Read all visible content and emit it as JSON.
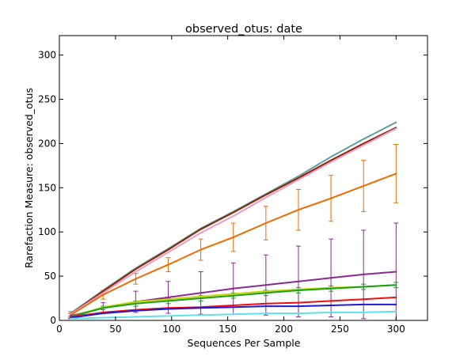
{
  "chart_data": {
    "type": "line",
    "title": "observed_otus: date",
    "xlabel": "Sequences Per Sample",
    "ylabel": "Rarefaction Measure: observed_otus",
    "xlim": [
      0,
      328
    ],
    "ylim": [
      0,
      322
    ],
    "xticks": [
      0,
      50,
      100,
      150,
      200,
      250,
      300
    ],
    "yticks": [
      0,
      50,
      100,
      150,
      200,
      250,
      300
    ],
    "grid": false,
    "x": [
      10,
      39,
      68,
      97,
      126,
      155,
      184,
      213,
      242,
      271,
      300
    ],
    "series": [
      {
        "color": "#5f9ea0",
        "values": [
          8,
          34,
          59,
          81,
          104,
          123,
          143,
          163,
          185,
          205,
          224
        ]
      },
      {
        "color": "#8b2500",
        "values": [
          7,
          33,
          58,
          80,
          103,
          122,
          142,
          161,
          181,
          200,
          218
        ]
      },
      {
        "color": "#ee9ac6",
        "values": [
          7,
          31,
          55,
          77,
          99,
          118,
          139,
          159,
          179,
          198,
          217
        ]
      },
      {
        "color": "#ee6a00",
        "values": [
          6,
          29,
          47,
          63,
          80,
          94,
          110,
          125,
          138,
          152,
          166
        ],
        "errors": [
          4,
          5,
          6,
          8,
          12,
          16,
          19,
          23,
          26,
          29,
          33
        ]
      },
      {
        "color": "#8b2a8e",
        "values": [
          5,
          14,
          21,
          26,
          31,
          36,
          40,
          44,
          48,
          52,
          55
        ],
        "errors": [
          3,
          6,
          12,
          18,
          24,
          29,
          34,
          40,
          44,
          50,
          55
        ]
      },
      {
        "color": "#c8d400",
        "values": [
          4,
          15,
          21,
          24,
          27,
          30,
          33,
          35,
          37,
          38,
          40
        ]
      },
      {
        "color": "#18a018",
        "values": [
          4,
          14,
          19,
          22,
          25,
          28,
          31,
          34,
          36,
          38,
          40
        ],
        "errors": [
          1,
          2,
          3,
          3,
          3,
          3,
          3,
          3,
          3,
          3,
          3
        ]
      },
      {
        "color": "#ee1010",
        "values": [
          4,
          9,
          12,
          14,
          15,
          17,
          19,
          20,
          22,
          24,
          26
        ]
      },
      {
        "color": "#1a1ad8",
        "values": [
          3,
          8,
          11,
          13,
          14,
          15,
          16,
          16,
          17,
          18,
          18
        ]
      },
      {
        "color": "#60e0e8",
        "values": [
          2,
          3,
          4,
          5,
          6,
          7,
          8,
          8,
          9,
          9,
          10
        ]
      }
    ]
  }
}
